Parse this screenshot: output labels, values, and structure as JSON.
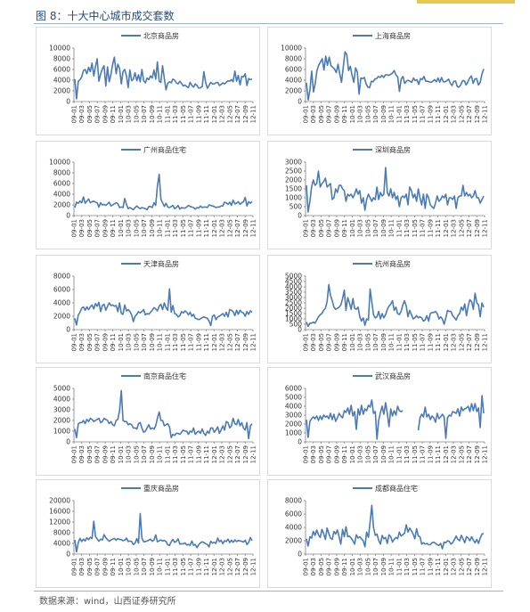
{
  "figure_title": "图 8：十大中心城市成交套数",
  "source": "数据来源：wind，山西证券研究所",
  "colors": {
    "line": "#4a7ab8",
    "axis": "#808080",
    "legend": "#4a7ab8"
  },
  "x_ticks": [
    "09-01",
    "09-03",
    "09-05",
    "09-07",
    "09-09",
    "09-11",
    "10-01",
    "10-03",
    "10-05",
    "10-07",
    "10-09",
    "10-11",
    "11-01",
    "11-03",
    "11-05",
    "11-07",
    "11-09",
    "11-11",
    "12-01",
    "12-03",
    "12-05",
    "12-07",
    "12-09",
    "12-11"
  ],
  "chart_data": [
    {
      "type": "line",
      "name": "北京商品房",
      "ylim": [
        0,
        10000
      ],
      "yticks": [
        0,
        2000,
        4000,
        6000,
        8000,
        10000
      ],
      "values": [
        4200,
        500,
        3800,
        4100,
        4600,
        5800,
        6000,
        5200,
        6400,
        5600,
        7200,
        4800,
        6600,
        8000,
        3800,
        5200,
        6100,
        6700,
        2900,
        6500,
        3700,
        5100,
        7000,
        8300,
        5200,
        7000,
        6200,
        3300,
        5600,
        6000,
        4800,
        2600,
        5900,
        3900,
        4200,
        5400,
        3900,
        5000,
        3700,
        6000,
        3900,
        3500,
        4400,
        4100,
        4800,
        4400,
        5900,
        4200,
        7400,
        3800,
        3600,
        6700,
        4300,
        2200,
        3400,
        3700,
        3500,
        4200,
        4000,
        3500,
        3300,
        3800,
        3400,
        2900,
        3100,
        2800,
        2600,
        3600,
        3000,
        2700,
        3300,
        3000,
        2500,
        2600,
        2800,
        5600,
        3600,
        2500,
        3000,
        3600,
        3300,
        3300,
        3500,
        3600,
        3000,
        3200,
        3500,
        3300,
        3600,
        3900,
        3800,
        4100,
        3700,
        5700,
        3800,
        4900,
        3100,
        4700,
        4600,
        5200,
        3000,
        4300,
        4100,
        4200
      ]
    },
    {
      "type": "line",
      "name": "上海商品房",
      "ylim": [
        0,
        10000
      ],
      "yticks": [
        0,
        2000,
        4000,
        6000,
        8000,
        10000
      ],
      "values": [
        3500,
        300,
        2100,
        5700,
        1800,
        3400,
        5800,
        6800,
        7400,
        8000,
        5900,
        8500,
        6800,
        8300,
        6700,
        6400,
        6100,
        5400,
        7000,
        5200,
        3600,
        6500,
        9300,
        8800,
        5800,
        6600,
        4900,
        3600,
        6300,
        5600,
        1400,
        4400,
        4300,
        4500,
        3300,
        2700,
        2600,
        3800,
        3700,
        4200,
        4300,
        4700,
        4500,
        4900,
        4500,
        5000,
        5000,
        4900,
        5100,
        5300,
        5800,
        5000,
        4600,
        1900,
        4200,
        4700,
        3400,
        3800,
        4000,
        3800,
        3600,
        4400,
        3900,
        4100,
        3200,
        4300,
        4100,
        4700,
        3800,
        3800,
        3700,
        3600,
        3800,
        4100,
        3700,
        4400,
        3600,
        4500,
        3700,
        3700,
        3900,
        4200,
        3400,
        3000,
        3800,
        3800,
        2800,
        2700,
        3200,
        3900,
        3900,
        3100,
        3700,
        4400,
        4800,
        3400,
        4200,
        4300,
        3100,
        3600,
        5100,
        6100
      ]
    },
    {
      "type": "line",
      "name": "广州商品住宅",
      "ylim": [
        0,
        10000
      ],
      "yticks": [
        0,
        2000,
        4000,
        6000,
        8000,
        10000
      ],
      "values": [
        1500,
        2500,
        2300,
        2700,
        2400,
        3500,
        2300,
        2700,
        3100,
        2400,
        2600,
        2700,
        2500,
        2400,
        1600,
        2400,
        2000,
        2100,
        1900,
        2200,
        2500,
        1800,
        2000,
        2200,
        2400,
        2200,
        1500,
        1600,
        1500,
        3200,
        2100,
        1300,
        1500,
        1300,
        1100,
        1500,
        1800,
        1500,
        1300,
        1500,
        1400,
        1300,
        1100,
        1700,
        1700,
        1500,
        2400,
        1900,
        5500,
        7700,
        3100,
        2400,
        1700,
        2300,
        1600,
        1500,
        1700,
        1900,
        1300,
        1500,
        1900,
        1200,
        1500,
        1400,
        1400,
        1600,
        1900,
        1700,
        1600,
        1500,
        1200,
        1500,
        1400,
        1800,
        1500,
        1600,
        1600,
        1500,
        2000,
        1900,
        1800,
        1700,
        1500,
        1600,
        1600,
        1800,
        1800,
        2500,
        2400,
        2100,
        2500,
        1900,
        2900,
        2200,
        2300,
        2600,
        2100,
        2400,
        2600,
        3400,
        1800,
        2600,
        2300,
        2600
      ]
    },
    {
      "type": "line",
      "name": "深圳商品房",
      "ylim": [
        0,
        3000
      ],
      "yticks": [
        0,
        500,
        1000,
        1500,
        2000,
        2500,
        3000
      ],
      "values": [
        1700,
        200,
        800,
        1600,
        2000,
        1700,
        1800,
        2500,
        1600,
        1800,
        1900,
        2100,
        1600,
        1700,
        1800,
        900,
        1000,
        1500,
        1300,
        1700,
        1700,
        1500,
        1400,
        800,
        1200,
        1100,
        1200,
        1000,
        1200,
        1500,
        1200,
        1400,
        700,
        1000,
        300,
        900,
        1200,
        1000,
        800,
        1000,
        900,
        1600,
        900,
        1300,
        1100,
        1200,
        2700,
        1300,
        1100,
        1500,
        1000,
        1300,
        900,
        1100,
        500,
        1000,
        1100,
        1000,
        1200,
        600,
        1600,
        1400,
        1000,
        1200,
        800,
        1500,
        1000,
        600,
        1200,
        400,
        1200,
        1000,
        600,
        500,
        400,
        700,
        1100,
        800,
        900,
        1100,
        1000,
        1200,
        600,
        1000,
        1000,
        900,
        1100,
        400,
        1000,
        1100,
        1100,
        1700,
        1100,
        1300,
        1100,
        1200,
        1000,
        1100,
        1400,
        1000,
        1000,
        700,
        900,
        1100
      ]
    },
    {
      "type": "line",
      "name": "天津商品房",
      "ylim": [
        0,
        8000
      ],
      "yticks": [
        0,
        2000,
        4000,
        6000,
        8000
      ],
      "values": [
        1700,
        700,
        2200,
        2600,
        3200,
        3400,
        2900,
        3400,
        3000,
        3400,
        3700,
        3100,
        3900,
        3500,
        4100,
        2700,
        3600,
        3800,
        2900,
        3500,
        4000,
        3600,
        3700,
        3500,
        3600,
        2700,
        4000,
        2400,
        2300,
        3700,
        2800,
        3000,
        2700,
        2200,
        1200,
        2000,
        2300,
        2700,
        2500,
        2700,
        3000,
        2200,
        2400,
        2300,
        2600,
        2900,
        3300,
        3100,
        2800,
        3500,
        3800,
        3000,
        4000,
        3300,
        2900,
        6100,
        2600,
        3600,
        2400,
        2300,
        1900,
        2100,
        2700,
        2500,
        2800,
        2600,
        2200,
        2600,
        2000,
        2300,
        1700,
        1600,
        1500,
        1600,
        1800,
        1900,
        1800,
        1700,
        1300,
        600,
        2000,
        2200,
        1500,
        1900,
        2000,
        2200,
        2400,
        2000,
        2600,
        1900,
        3000,
        2900,
        2700,
        2100,
        2900,
        2300,
        2900,
        2600,
        2500,
        2000,
        2700,
        2300,
        2800,
        2600
      ]
    },
    {
      "type": "line",
      "name": "杭州商品房",
      "ylim": [
        0,
        5000
      ],
      "yticks": [
        0,
        500,
        1000,
        1500,
        2000,
        2500,
        3000,
        3500,
        4000,
        4500,
        5000
      ],
      "values": [
        700,
        300,
        600,
        600,
        700,
        600,
        900,
        1200,
        1400,
        1500,
        1800,
        2000,
        2600,
        4200,
        3200,
        2700,
        2100,
        1900,
        2000,
        2100,
        2300,
        2900,
        3700,
        1800,
        3000,
        2500,
        1900,
        2900,
        2000,
        1900,
        2100,
        1200,
        800,
        1100,
        400,
        1000,
        900,
        3800,
        2600,
        1400,
        1100,
        1200,
        1700,
        1000,
        1500,
        1100,
        1400,
        1900,
        2200,
        2400,
        2700,
        1800,
        2100,
        1500,
        1400,
        1700,
        2300,
        2700,
        2200,
        1200,
        1800,
        1400,
        1000,
        1100,
        1300,
        1100,
        1200,
        1100,
        800,
        900,
        1300,
        800,
        1500,
        1600,
        1600,
        1700,
        1500,
        1000,
        1200,
        1000,
        500,
        1100,
        1800,
        1700,
        1700,
        1300,
        1100,
        900,
        1300,
        1500,
        2100,
        1800,
        2400,
        1300,
        2200,
        2800,
        2600,
        1900,
        3400,
        2500,
        2300,
        1200,
        2500,
        2100
      ]
    },
    {
      "type": "line",
      "name": "南京商品住宅",
      "ylim": [
        0,
        5000
      ],
      "yticks": [
        0,
        1000,
        2000,
        3000,
        4000,
        5000
      ],
      "values": [
        1200,
        400,
        1700,
        1800,
        1800,
        2000,
        1700,
        2100,
        1900,
        2200,
        2100,
        1900,
        2000,
        2100,
        2200,
        1800,
        1900,
        2200,
        2100,
        2000,
        1700,
        1900,
        1600,
        1500,
        2000,
        2100,
        2900,
        4800,
        2000,
        1900,
        1900,
        1600,
        1700,
        1600,
        1300,
        1300,
        1200,
        1700,
        1800,
        1300,
        900,
        1000,
        1300,
        1600,
        1200,
        1300,
        1200,
        1500,
        2200,
        2800,
        2000,
        2000,
        1500,
        1600,
        1700,
        1400,
        400,
        700,
        600,
        800,
        800,
        700,
        900,
        1100,
        1000,
        1000,
        700,
        1000,
        900,
        1300,
        700,
        900,
        1000,
        800,
        1200,
        800,
        600,
        1000,
        800,
        1300,
        1300,
        900,
        1100,
        1400,
        800,
        1100,
        1500,
        1100,
        1900,
        1800,
        1300,
        1500,
        2200,
        1700,
        1600,
        2100,
        1500,
        1800,
        1300,
        1100,
        1800,
        300,
        1500,
        1700
      ]
    },
    {
      "type": "line",
      "name": "武汉商品房",
      "ylim": [
        0,
        6000
      ],
      "yticks": [
        0,
        1000,
        2000,
        3000,
        4000,
        5000,
        6000
      ],
      "values": [
        2500,
        500,
        2300,
        2600,
        2800,
        2600,
        2900,
        2400,
        2900,
        2500,
        3000,
        2800,
        2900,
        2600,
        3200,
        2500,
        3100,
        2300,
        2700,
        3200,
        2900,
        2700,
        3500,
        3300,
        3800,
        3100,
        4100,
        2900,
        3400,
        1400,
        3700,
        3000,
        4100,
        3100,
        3700,
        3500,
        4100,
        3900,
        4700,
        3200,
        3400,
        300,
        2400,
        3300,
        4000,
        3100,
        4400,
        3200,
        1700,
        3700,
        2900,
        3500,
        3000,
        4000,
        3500,
        3400,
        3500,
        null,
        null,
        null,
        null,
        null,
        null,
        null,
        null,
        1300,
        2700,
        3100,
        2800,
        3900,
        2800,
        3100,
        2500,
        2900,
        2700,
        2200,
        3200,
        2600,
        2800,
        3100,
        2800,
        400,
        2700,
        3000,
        2900,
        3400,
        3300,
        3200,
        3700,
        2900,
        3900,
        3500,
        3700,
        3800,
        4000,
        3400,
        4300,
        3500,
        4300,
        3400,
        3800,
        1600,
        5200,
        3200
      ]
    },
    {
      "type": "line",
      "name": "重庆商品房",
      "ylim": [
        0,
        20000
      ],
      "yticks": [
        0,
        4000,
        8000,
        12000,
        16000,
        20000
      ],
      "values": [
        5300,
        800,
        4300,
        5900,
        4700,
        5600,
        4900,
        6100,
        5400,
        6300,
        5800,
        12300,
        6600,
        5700,
        4800,
        5600,
        5300,
        7300,
        6100,
        5400,
        4800,
        5300,
        5600,
        5900,
        5200,
        5800,
        5500,
        5400,
        5000,
        5200,
        6000,
        4700,
        4900,
        4700,
        3600,
        4100,
        5800,
        4100,
        15200,
        6000,
        4600,
        4700,
        4900,
        5200,
        5600,
        4800,
        5300,
        7200,
        4600,
        5000,
        5300,
        4900,
        5100,
        4700,
        3500,
        3200,
        4600,
        5500,
        4400,
        4800,
        5700,
        3700,
        3900,
        3800,
        4200,
        3400,
        3600,
        3300,
        4900,
        3300,
        3600,
        2400,
        3500,
        4200,
        4600,
        4300,
        3900,
        3600,
        2700,
        4800,
        4100,
        4400,
        4000,
        6000,
        4600,
        5200,
        3900,
        5000,
        4700,
        5600,
        4300,
        5200,
        4400,
        5300,
        4700,
        5100,
        4900,
        4800,
        4500,
        5200,
        3600,
        4300,
        6200,
        5000
      ]
    },
    {
      "type": "line",
      "name": "成都商品住宅",
      "ylim": [
        0,
        8000
      ],
      "yticks": [
        0,
        2000,
        4000,
        6000,
        8000
      ],
      "values": [
        2300,
        1200,
        2600,
        2400,
        3400,
        2800,
        3600,
        2900,
        2500,
        3700,
        3100,
        2200,
        3900,
        3100,
        2400,
        2200,
        3400,
        3000,
        3600,
        2600,
        1500,
        3700,
        2600,
        4100,
        2600,
        2700,
        2400,
        2000,
        1500,
        2900,
        2400,
        2600,
        2300,
        2000,
        1100,
        3300,
        2500,
        4800,
        7300,
        4000,
        2800,
        3000,
        2100,
        1500,
        2800,
        2300,
        2500,
        1600,
        2900,
        2600,
        1800,
        2200,
        2500,
        2300,
        3300,
        2700,
        2900,
        3100,
        4400,
        3300,
        3900,
        3500,
        3000,
        2300,
        3800,
        2700,
        2600,
        1500,
        1700,
        1500,
        1600,
        1400,
        1400,
        1700,
        1800,
        1600,
        1400,
        1300,
        1600,
        800,
        1800,
        1700,
        2000,
        1900,
        1500,
        1700,
        2200,
        2700,
        2200,
        2000,
        2800,
        2300,
        1700,
        2600,
        2400,
        2000,
        2600,
        2100,
        1700,
        2200,
        1600,
        2400,
        3000,
        3100
      ]
    }
  ]
}
